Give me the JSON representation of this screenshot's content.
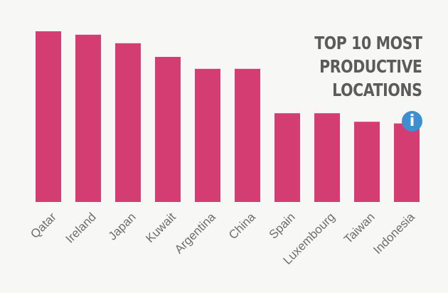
{
  "chart_data": {
    "type": "bar",
    "title": "TOP 10 MOST PRODUCTIVE LOCATIONS",
    "title_lines": [
      "TOP 10 MOST",
      "PRODUCTIVE",
      "LOCATIONS"
    ],
    "categories": [
      "Qatar",
      "Ireland",
      "Japan",
      "Kuwait",
      "Argentina",
      "China",
      "Spain",
      "Luxembourg",
      "Taiwan",
      "Indonesia"
    ],
    "values": [
      100,
      98,
      93,
      85,
      78,
      78,
      52,
      52,
      47,
      46
    ],
    "ylim": [
      0,
      100
    ],
    "xlabel": "",
    "ylabel": "",
    "grid": false,
    "legend": "none",
    "bar_color": "#d33d72"
  },
  "info_icon": {
    "name": "info-icon",
    "glyph": "i",
    "color": "#3e8fd0"
  }
}
